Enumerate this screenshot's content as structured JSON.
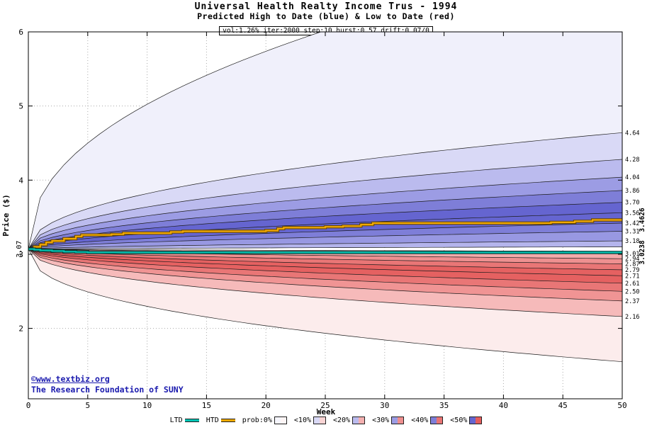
{
  "chart_data": {
    "type": "fan",
    "title": "Universal Health Realty Income Trus - 1994",
    "subtitle": "Predicted High to Date (blue) &  Low to Date (red)",
    "params_line": "vol:1.26% iter:2000 step:10 hurst:0.57 drift:0.07/0",
    "xlabel": "Week",
    "ylabel": "Price ($)",
    "xlim": [
      0,
      50
    ],
    "ylim": [
      1.05,
      6
    ],
    "xticks": [
      0,
      5,
      10,
      15,
      20,
      25,
      30,
      35,
      40,
      45,
      50
    ],
    "yticks": [
      2,
      3,
      4,
      5,
      6
    ],
    "grid": true,
    "start_price": 3.07,
    "start_label": "3.07",
    "htd_end_label": "3.4626",
    "ltd_end_label": "3.0238",
    "end_label_color": "#008000",
    "right_labels": [
      4.64,
      4.28,
      4.04,
      3.86,
      3.7,
      3.56,
      3.42,
      3.31,
      3.18,
      3.01,
      2.94,
      2.87,
      2.79,
      2.71,
      2.61,
      2.5,
      2.37,
      2.16
    ],
    "upper_boundaries": [
      {
        "end": 3.1,
        "alpha": 0.7
      },
      {
        "end": 3.18,
        "alpha": 0.62
      },
      {
        "end": 3.31,
        "alpha": 0.58
      },
      {
        "end": 3.42,
        "alpha": 0.55
      },
      {
        "end": 3.56,
        "alpha": 0.53
      },
      {
        "end": 3.7,
        "alpha": 0.51
      },
      {
        "end": 3.86,
        "alpha": 0.5
      },
      {
        "end": 4.04,
        "alpha": 0.48
      },
      {
        "end": 4.28,
        "alpha": 0.47
      },
      {
        "end": 4.64,
        "alpha": 0.46
      },
      {
        "end": 7.1,
        "alpha": 0.45
      }
    ],
    "lower_boundaries": [
      {
        "end": 3.04,
        "alpha": 0.7
      },
      {
        "end": 3.01,
        "alpha": 0.62
      },
      {
        "end": 2.94,
        "alpha": 0.58
      },
      {
        "end": 2.87,
        "alpha": 0.55
      },
      {
        "end": 2.79,
        "alpha": 0.53
      },
      {
        "end": 2.71,
        "alpha": 0.51
      },
      {
        "end": 2.61,
        "alpha": 0.5
      },
      {
        "end": 2.5,
        "alpha": 0.48
      },
      {
        "end": 2.37,
        "alpha": 0.47
      },
      {
        "end": 2.16,
        "alpha": 0.46
      },
      {
        "end": 1.55,
        "alpha": 0.42
      }
    ],
    "upper_band_colors": [
      "#b4b4ec",
      "#9898e2",
      "#7e7ed8",
      "#6565d0",
      "#6565d0",
      "#7e7ed8",
      "#9c9ce4",
      "#bbbbee",
      "#d9d9f6",
      "#f0f0fb"
    ],
    "lower_band_colors": [
      "#f7c6c6",
      "#f3aaaa",
      "#ee9090",
      "#e97676",
      "#e56161",
      "#e56161",
      "#e97676",
      "#f09494",
      "#f6baba",
      "#fcecec"
    ],
    "boundary_stroke": "#1b1b1b",
    "series": [
      {
        "name": "HTD",
        "color": "#f2a900",
        "edge": "#6b4a00",
        "steps": [
          [
            0,
            3.07
          ],
          [
            0.5,
            3.1
          ],
          [
            1,
            3.13
          ],
          [
            1.5,
            3.16
          ],
          [
            2,
            3.18
          ],
          [
            3,
            3.21
          ],
          [
            4,
            3.24
          ],
          [
            4.5,
            3.26
          ],
          [
            7,
            3.27
          ],
          [
            8,
            3.285
          ],
          [
            12,
            3.3
          ],
          [
            13,
            3.31
          ],
          [
            20,
            3.32
          ],
          [
            21,
            3.345
          ],
          [
            21.5,
            3.36
          ],
          [
            25,
            3.37
          ],
          [
            26.5,
            3.38
          ],
          [
            28,
            3.4
          ],
          [
            29,
            3.42
          ],
          [
            44,
            3.43
          ],
          [
            46,
            3.445
          ],
          [
            47.5,
            3.4626
          ],
          [
            50,
            3.4626
          ]
        ]
      },
      {
        "name": "LTD",
        "color": "#00c4b3",
        "edge": "#00332e",
        "steps": [
          [
            0,
            3.07
          ],
          [
            0.5,
            3.062
          ],
          [
            1,
            3.052
          ],
          [
            2,
            3.043
          ],
          [
            3,
            3.035
          ],
          [
            4,
            3.03
          ],
          [
            5,
            3.0238
          ],
          [
            50,
            3.0238
          ]
        ]
      }
    ]
  },
  "legend": {
    "items": [
      {
        "type": "line",
        "label": "LTD",
        "color": "#00c4b3"
      },
      {
        "type": "line",
        "label": "HTD",
        "color": "#f2a900"
      },
      {
        "type": "swatch",
        "label": "prob:0%",
        "blue": "#f6f6fd",
        "red": "#fdf5f5"
      },
      {
        "type": "swatch",
        "label": "<10%",
        "blue": "#d9d9f6",
        "red": "#f9d4d4"
      },
      {
        "type": "swatch",
        "label": "<20%",
        "blue": "#bbbbee",
        "red": "#f4b0b0"
      },
      {
        "type": "swatch",
        "label": "<30%",
        "blue": "#9c9ce4",
        "red": "#ee8f8f"
      },
      {
        "type": "swatch",
        "label": "<40%",
        "blue": "#7e7ed8",
        "red": "#e97474"
      },
      {
        "type": "swatch",
        "label": "<50%",
        "blue": "#6565d0",
        "red": "#e45c5c"
      }
    ]
  },
  "footer": {
    "site": "©www.textbiz.org",
    "org": "The Research Foundation of SUNY"
  }
}
